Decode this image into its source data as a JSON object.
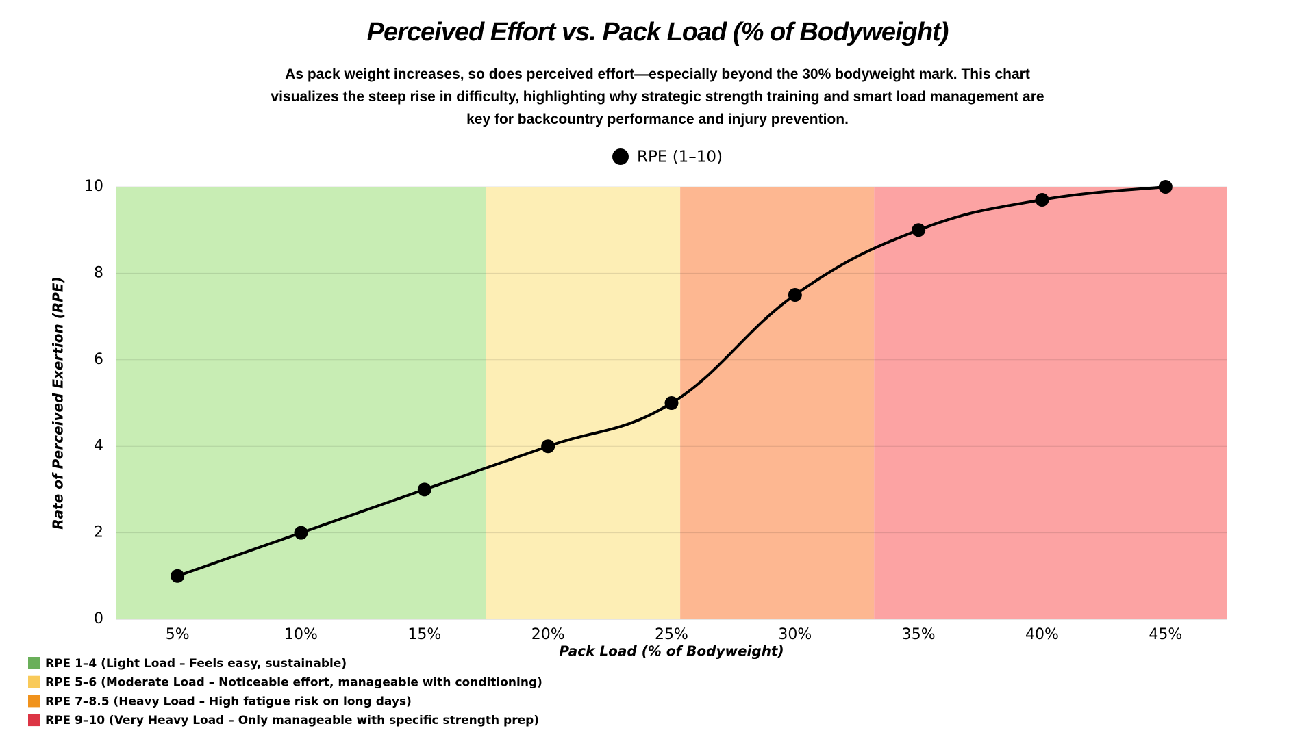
{
  "chart_data": {
    "type": "line",
    "title": "Perceived Effort vs. Pack Load (% of Bodyweight)",
    "subtitle": "As pack weight increases, so does perceived effort—especially beyond the 30% bodyweight mark. This chart visualizes the steep rise in difficulty, highlighting why strategic strength training and smart load management are key for backcountry performance and injury prevention.",
    "x_label": "Pack Load (% of Bodyweight)",
    "y_label": "Rate of Perceived Exertion (RPE)",
    "categories": [
      "5%",
      "10%",
      "15%",
      "20%",
      "25%",
      "30%",
      "35%",
      "40%",
      "45%"
    ],
    "series": [
      {
        "name": "RPE (1–10)",
        "color": "#000000",
        "values": [
          1,
          2,
          3,
          4,
          5,
          7.5,
          9,
          9.7,
          10
        ]
      }
    ],
    "ylim": [
      0,
      10
    ],
    "yticks": [
      0,
      2,
      4,
      6,
      8,
      10
    ],
    "grid": true,
    "legend": "top",
    "bands": [
      {
        "label": "RPE 1–4 (Light Load – Feels easy, sustainable)",
        "color": "#c8edb4",
        "legend_color": "#6aaf5a",
        "from": 2.5,
        "to": 17.5
      },
      {
        "label": "RPE 5–6 (Moderate Load – Noticeable effort, manageable with conditioning)",
        "color": "#fdeeb5",
        "legend_color": "#f9ca5a",
        "from": 17.5,
        "to": 25.35
      },
      {
        "label": "RPE 7–8.5 (Heavy Load – High fatigue risk on long days)",
        "color": "#fdb791",
        "legend_color": "#f0921c",
        "from": 25.35,
        "to": 33.2
      },
      {
        "label": "RPE 9–10 (Very Heavy Load – Only manageable with specific strength prep)",
        "color": "#fca3a3",
        "legend_color": "#dc3545",
        "from": 33.2,
        "to": 47.5
      }
    ]
  }
}
